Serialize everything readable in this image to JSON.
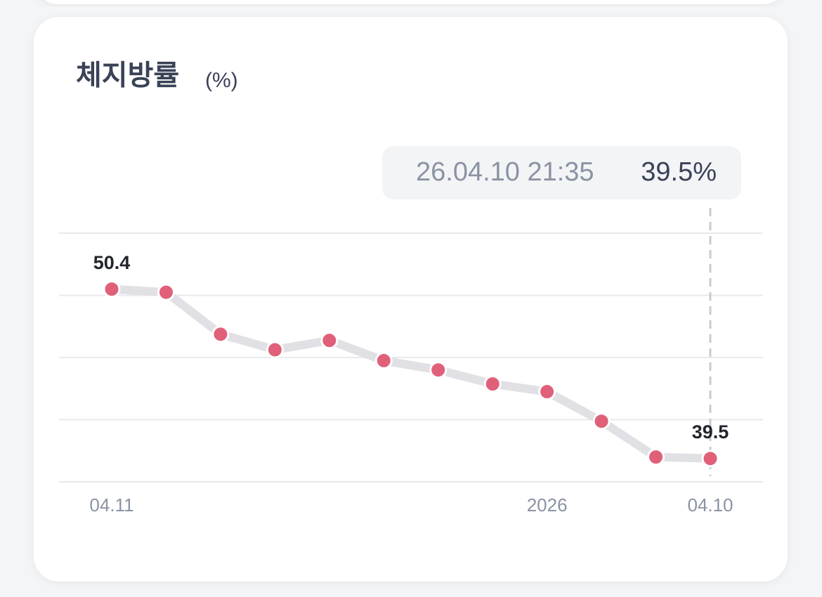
{
  "chart_data": {
    "type": "line",
    "title": "체지방률",
    "unit": "(%)",
    "categories": [
      "04.11",
      null,
      null,
      null,
      null,
      null,
      null,
      null,
      "2026",
      null,
      null,
      "04.10"
    ],
    "values": [
      50.4,
      50.2,
      47.5,
      46.5,
      47.1,
      45.8,
      45.2,
      44.3,
      43.8,
      41.9,
      39.6,
      39.5
    ],
    "color": "#e0607a",
    "line_color": "#e0e0e5",
    "ylim": [
      38,
      54
    ],
    "yticks": [
      38,
      42,
      46,
      50,
      54
    ],
    "grid": true,
    "tooltip": {
      "label": "26.04.10 21:35",
      "value_label": "39.5%"
    }
  }
}
